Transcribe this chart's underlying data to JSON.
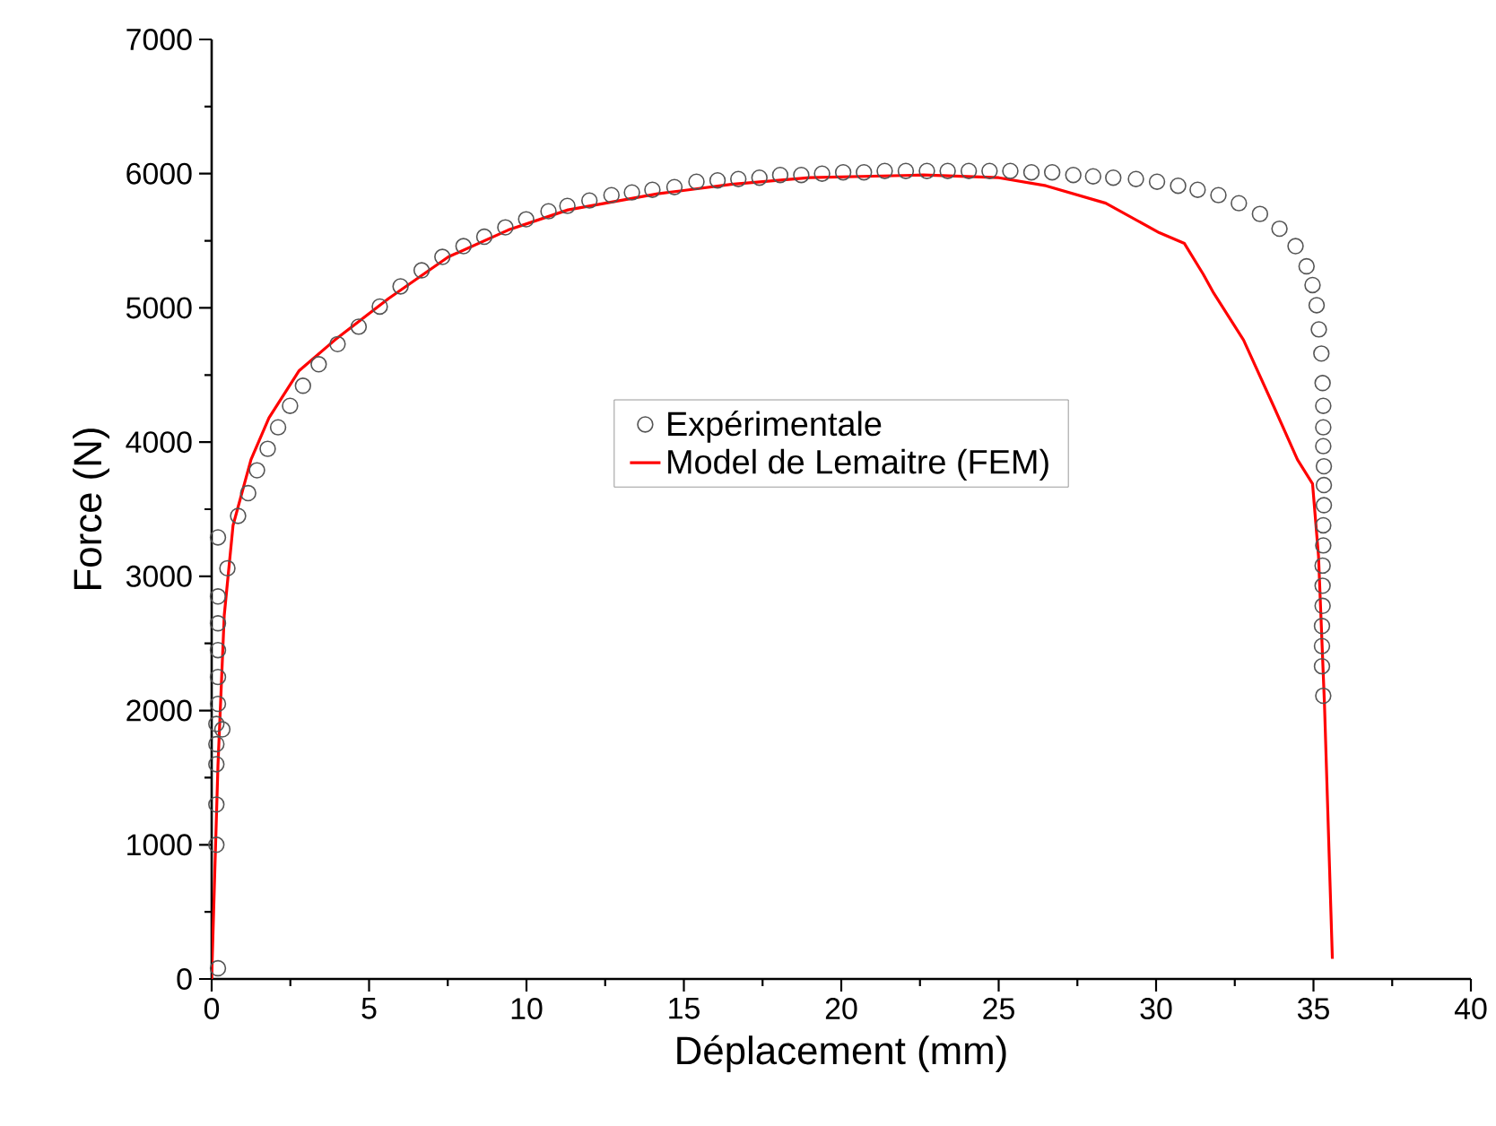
{
  "chart_data": {
    "type": "scatter",
    "xlabel": "Déplacement (mm)",
    "ylabel": "Force (N)",
    "xlim": [
      0,
      40
    ],
    "ylim": [
      0,
      7000
    ],
    "xticks": [
      0,
      5,
      10,
      15,
      20,
      25,
      30,
      35,
      40
    ],
    "yticks": [
      0,
      1000,
      2000,
      3000,
      4000,
      5000,
      6000,
      7000
    ],
    "grid": false,
    "legend": "center",
    "series": [
      {
        "name": "Expérimentale",
        "marker": "circle",
        "color": "#555555",
        "x": [
          0.2,
          0.15,
          0.15,
          0.15,
          0.15,
          0.15,
          0.34,
          0.2,
          0.2,
          0.2,
          0.2,
          0.2,
          0.5,
          0.2,
          0.84,
          1.16,
          1.44,
          1.78,
          2.11,
          2.49,
          2.9,
          3.4,
          4.0,
          4.67,
          5.34,
          6.0,
          6.67,
          7.33,
          8.0,
          8.66,
          9.33,
          9.99,
          10.7,
          11.3,
          12.0,
          12.7,
          13.35,
          14.0,
          14.7,
          15.4,
          16.07,
          16.73,
          17.4,
          18.06,
          18.73,
          19.39,
          20.06,
          20.72,
          21.38,
          22.05,
          22.72,
          23.38,
          24.05,
          24.71,
          25.37,
          26.04,
          26.7,
          27.37,
          28.0,
          28.64,
          29.36,
          30.03,
          30.7,
          31.32,
          31.98,
          32.63,
          33.3,
          33.92,
          34.43,
          34.78,
          34.97,
          35.1,
          35.17,
          35.25,
          35.29,
          35.31,
          35.31,
          35.31,
          35.33,
          35.33,
          35.33,
          35.31,
          35.31,
          35.29,
          35.29,
          35.29,
          35.27,
          35.27,
          35.27,
          35.31
        ],
        "values": [
          80,
          1000,
          1300,
          1600,
          1750,
          1900,
          1860,
          2050,
          2250,
          2450,
          2650,
          2850,
          3060,
          3290,
          3450,
          3620,
          3790,
          3950,
          4110,
          4270,
          4420,
          4580,
          4730,
          4860,
          5010,
          5160,
          5280,
          5380,
          5460,
          5530,
          5600,
          5660,
          5720,
          5760,
          5800,
          5840,
          5860,
          5880,
          5900,
          5940,
          5950,
          5960,
          5970,
          5990,
          5990,
          6000,
          6010,
          6010,
          6020,
          6020,
          6020,
          6020,
          6020,
          6020,
          6020,
          6010,
          6010,
          5990,
          5980,
          5970,
          5960,
          5940,
          5910,
          5880,
          5840,
          5780,
          5700,
          5590,
          5460,
          5310,
          5170,
          5020,
          4840,
          4660,
          4440,
          4270,
          4110,
          3970,
          3820,
          3680,
          3530,
          3380,
          3230,
          3080,
          2930,
          2780,
          2630,
          2480,
          2330,
          2110
        ]
      },
      {
        "name": "Model de Lemaitre (FEM)",
        "type": "line",
        "marker": "none",
        "line_style": "solid",
        "color": "#ff0000",
        "x": [
          0.0,
          0.1,
          0.2,
          0.4,
          0.68,
          1.25,
          1.82,
          2.77,
          3.91,
          5.62,
          7.52,
          9.42,
          11.32,
          14.17,
          16.5,
          19.0,
          22.6,
          25.0,
          26.5,
          28.4,
          30.1,
          30.9,
          31.5,
          31.83,
          32.78,
          33.73,
          34.49,
          34.97,
          35.16,
          35.35,
          35.6
        ],
        "values": [
          0,
          800,
          1590,
          2710,
          3380,
          3870,
          4180,
          4530,
          4760,
          5070,
          5380,
          5580,
          5730,
          5850,
          5920,
          5970,
          5990,
          5970,
          5910,
          5780,
          5560,
          5480,
          5250,
          5110,
          4760,
          4270,
          3870,
          3690,
          3150,
          2040,
          150
        ]
      }
    ]
  }
}
